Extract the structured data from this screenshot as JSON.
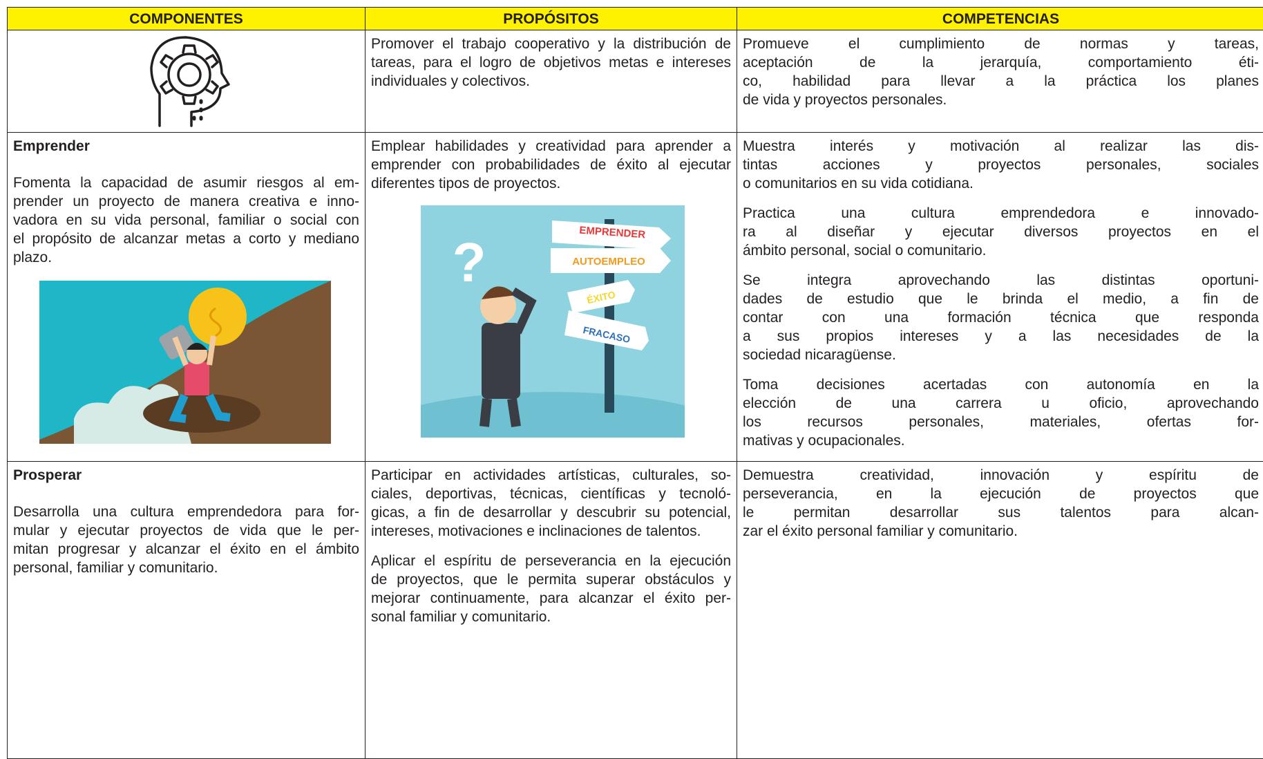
{
  "header": {
    "columns": [
      "COMPONENTES",
      "PROPÓSITOS",
      "COMPETENCIAS"
    ]
  },
  "rows": [
    {
      "purposes": [
        [
          "Promover el trabajo cooperativo y la distribución de",
          "tareas, para el logro de objetivos metas e intereses",
          "individuales y colectivos."
        ]
      ],
      "competencies": [
        [
          "Promueve el cumplimiento de normas y tareas,",
          "aceptación de la jerarquía, comportamiento éti-",
          "co, habilidad para llevar a la práctica los planes",
          "de vida y proyectos personales."
        ]
      ]
    },
    {
      "component": {
        "title": "Emprender",
        "lines": [
          "Fomenta la capacidad de asumir riesgos al em-",
          "prender un proyecto de manera creativa e inno-",
          "vadora en su vida personal, familiar o social con",
          "el propósito de alcanzar metas a corto y mediano",
          "plazo."
        ]
      },
      "purposes": [
        [
          "Emplear habilidades y creatividad para aprender a",
          "emprender con probabilidades de éxito al ejecutar",
          "diferentes tipos de proyectos."
        ]
      ],
      "competencies": [
        [
          "Muestra interés y motivación al realizar las dis-",
          "tintas acciones y proyectos personales, sociales",
          "o comunitarios en su vida cotidiana."
        ],
        [
          "Practica una cultura emprendedora e innovado-",
          "ra al diseñar y ejecutar diversos proyectos en el",
          "ámbito personal, social o comunitario."
        ],
        [
          "Se integra aprovechando las distintas oportuni-",
          "dades de estudio que le brinda el medio, a fin de",
          "contar con una formación técnica que responda",
          "a sus propios intereses y a las necesidades de la",
          "sociedad nicaragüense."
        ],
        [
          "Toma decisiones acertadas con autonomía en la",
          "elección de una carrera u oficio, aprovechando",
          "los recursos personales, materiales, ofertas for-",
          "mativas y ocupacionales."
        ]
      ]
    },
    {
      "component": {
        "title": "Prosperar",
        "lines": [
          "Desarrolla una cultura emprendedora para for-",
          "mular y ejecutar proyectos de vida que le per-",
          "mitan progresar y alcanzar el éxito en el ámbito",
          "personal, familiar y comunitario."
        ]
      },
      "purposes": [
        [
          "Participar en actividades artísticas, culturales, so-",
          "ciales, deportivas, técnicas, científicas y tecnoló-",
          "gicas, a fin de desarrollar y descubrir su potencial,",
          "intereses, motivaciones e inclinaciones de talentos."
        ],
        [
          "Aplicar el espíritu de perseverancia en la ejecución",
          "de proyectos, que le permita superar obstáculos y",
          "mejorar continuamente, para alcanzar el éxito per-",
          "sonal familiar y comunitario."
        ]
      ],
      "competencies": [
        [
          "Demuestra creatividad, innovación y espíritu de",
          "perseverancia, en la ejecución de proyectos que",
          "le permitan desarrollar sus talentos para alcan-",
          "zar el éxito personal familiar y comunitario."
        ]
      ]
    }
  ],
  "signs": [
    "EMPRENDER",
    "AUTOEMPLEO",
    "ÉXITO",
    "FRACASO"
  ]
}
